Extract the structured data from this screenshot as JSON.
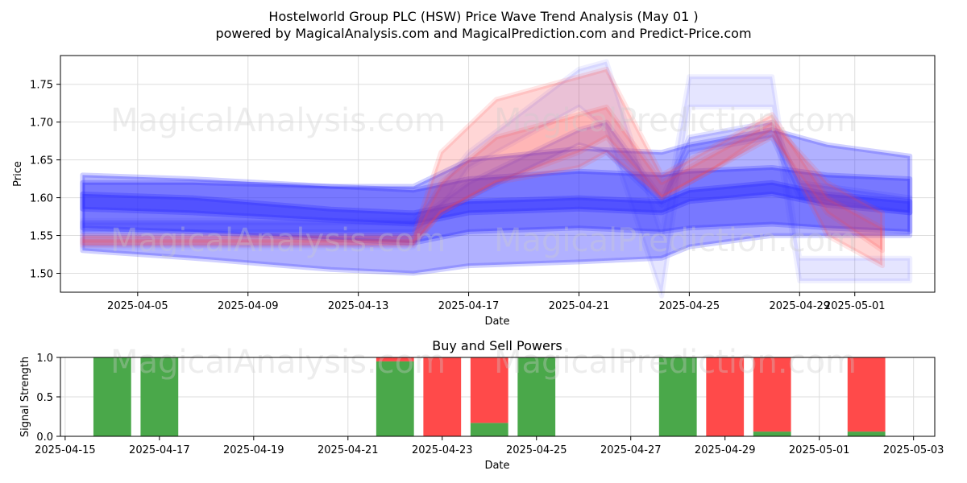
{
  "title_line1": "Hostelworld Group PLC (HSW) Price Wave Trend Analysis (May 01 )",
  "title_line2": "powered by MagicalAnalysis.com and MagicalPrediction.com and Predict-Price.com",
  "watermarks": [
    "MagicalAnalysis.com",
    "MagicalPrediction.com"
  ],
  "colors": {
    "blue": "#3333ff",
    "red": "#ff4444",
    "buy": "#4aa84a",
    "sell": "#ff4a4a",
    "grid": "#dddddd"
  },
  "chart_data": [
    {
      "type": "area",
      "title": "",
      "xlabel": "Date",
      "ylabel": "Price",
      "x_ticks": [
        "2025-04-05",
        "2025-04-09",
        "2025-04-13",
        "2025-04-17",
        "2025-04-21",
        "2025-04-25",
        "2025-04-29",
        "2025-05-01"
      ],
      "y_ticks": [
        "1.50",
        "1.55",
        "1.60",
        "1.65",
        "1.70",
        "1.75"
      ],
      "xlim": [
        "2025-04-02",
        "2025-05-04"
      ],
      "ylim": [
        1.475,
        1.788
      ],
      "grid": true,
      "blue_bands": [
        {
          "dates": [
            "2025-04-03",
            "2025-04-07",
            "2025-04-12",
            "2025-04-15",
            "2025-04-17",
            "2025-04-21",
            "2025-04-24",
            "2025-04-25",
            "2025-04-28",
            "2025-04-30",
            "2025-05-03"
          ],
          "upper": [
            1.63,
            1.625,
            1.615,
            1.615,
            1.65,
            1.665,
            1.66,
            1.67,
            1.69,
            1.67,
            1.655
          ],
          "lower": [
            1.53,
            1.52,
            1.505,
            1.5,
            1.51,
            1.515,
            1.52,
            1.535,
            1.55,
            1.55,
            1.55
          ]
        },
        {
          "dates": [
            "2025-04-03",
            "2025-04-07",
            "2025-04-12",
            "2025-04-15",
            "2025-04-17",
            "2025-04-21",
            "2025-04-24",
            "2025-04-25",
            "2025-04-28",
            "2025-04-30",
            "2025-05-03"
          ],
          "upper": [
            1.62,
            1.62,
            1.615,
            1.61,
            1.625,
            1.635,
            1.63,
            1.635,
            1.64,
            1.63,
            1.625
          ],
          "lower": [
            1.56,
            1.555,
            1.545,
            1.54,
            1.555,
            1.56,
            1.555,
            1.56,
            1.565,
            1.56,
            1.555
          ]
        },
        {
          "dates": [
            "2025-04-03",
            "2025-04-07",
            "2025-04-12",
            "2025-04-15",
            "2025-04-17",
            "2025-04-21",
            "2025-04-24",
            "2025-04-25",
            "2025-04-28",
            "2025-04-30",
            "2025-05-03"
          ],
          "upper": [
            1.605,
            1.6,
            1.585,
            1.58,
            1.595,
            1.6,
            1.595,
            1.61,
            1.62,
            1.605,
            1.595
          ],
          "lower": [
            1.585,
            1.58,
            1.57,
            1.565,
            1.58,
            1.585,
            1.58,
            1.595,
            1.605,
            1.59,
            1.58
          ]
        },
        {
          "dates": [
            "2025-04-03",
            "2025-04-07",
            "2025-04-12",
            "2025-04-15",
            "2025-04-17",
            "2025-04-21",
            "2025-04-22",
            "2025-04-24",
            "2025-04-25",
            "2025-04-28",
            "2025-04-29",
            "2025-05-03"
          ],
          "upper": [
            1.57,
            1.57,
            1.57,
            1.57,
            1.66,
            1.77,
            1.78,
            1.55,
            1.76,
            1.76,
            1.52,
            1.52
          ],
          "lower": [
            1.535,
            1.535,
            1.535,
            1.535,
            1.64,
            1.72,
            1.69,
            1.47,
            1.72,
            1.72,
            1.49,
            1.49
          ]
        },
        {
          "dates": [
            "2025-04-03",
            "2025-04-07",
            "2025-04-12",
            "2025-04-15",
            "2025-04-17",
            "2025-04-21",
            "2025-04-22",
            "2025-04-24",
            "2025-04-25",
            "2025-04-28",
            "2025-04-29",
            "2025-05-03"
          ],
          "upper": [
            1.567,
            1.567,
            1.567,
            1.567,
            1.62,
            1.69,
            1.7,
            1.6,
            1.68,
            1.7,
            1.62,
            1.6
          ],
          "lower": [
            1.555,
            1.555,
            1.555,
            1.555,
            1.6,
            1.67,
            1.66,
            1.59,
            1.66,
            1.68,
            1.6,
            1.58
          ]
        }
      ],
      "red_bands": [
        {
          "dates": [
            "2025-04-03",
            "2025-04-15",
            "2025-04-16",
            "2025-04-18",
            "2025-04-21",
            "2025-04-22",
            "2025-04-24",
            "2025-04-26",
            "2025-04-28",
            "2025-04-30",
            "2025-05-02"
          ],
          "upper": [
            1.55,
            1.55,
            1.66,
            1.73,
            1.76,
            1.77,
            1.63,
            1.67,
            1.71,
            1.6,
            1.56
          ],
          "lower": [
            1.54,
            1.54,
            1.58,
            1.62,
            1.66,
            1.68,
            1.6,
            1.64,
            1.69,
            1.55,
            1.51
          ]
        },
        {
          "dates": [
            "2025-04-03",
            "2025-04-15",
            "2025-04-16",
            "2025-04-18",
            "2025-04-21",
            "2025-04-22",
            "2025-04-24",
            "2025-04-26",
            "2025-04-28",
            "2025-04-30",
            "2025-05-02"
          ],
          "upper": [
            1.545,
            1.545,
            1.62,
            1.68,
            1.71,
            1.72,
            1.62,
            1.66,
            1.7,
            1.62,
            1.58
          ],
          "lower": [
            1.537,
            1.537,
            1.58,
            1.62,
            1.64,
            1.66,
            1.6,
            1.64,
            1.68,
            1.58,
            1.53
          ]
        }
      ]
    },
    {
      "type": "bar",
      "title": "Buy and Sell Powers",
      "xlabel": "Date",
      "ylabel": "Signal Strength",
      "x_ticks": [
        "2025-04-15",
        "2025-04-17",
        "2025-04-19",
        "2025-04-21",
        "2025-04-23",
        "2025-04-25",
        "2025-04-27",
        "2025-04-29",
        "2025-05-01",
        "2025-05-03"
      ],
      "y_ticks": [
        "0.0",
        "0.5",
        "1.0"
      ],
      "xlim": [
        "2025-04-15",
        "2025-05-03"
      ],
      "ylim": [
        0,
        1
      ],
      "categories": [
        "2025-04-16",
        "2025-04-17",
        "2025-04-22",
        "2025-04-23",
        "2025-04-24",
        "2025-04-25",
        "2025-04-28",
        "2025-04-29",
        "2025-04-30",
        "2025-05-02"
      ],
      "series": [
        {
          "values": [
            1.0,
            1.0,
            0.95,
            0.0,
            0.17,
            1.0,
            1.0,
            0.0,
            0.06,
            0.06
          ]
        },
        {
          "values": [
            0.0,
            0.0,
            0.05,
            1.0,
            0.83,
            0.0,
            0.0,
            1.0,
            0.94,
            0.94
          ]
        }
      ]
    }
  ]
}
